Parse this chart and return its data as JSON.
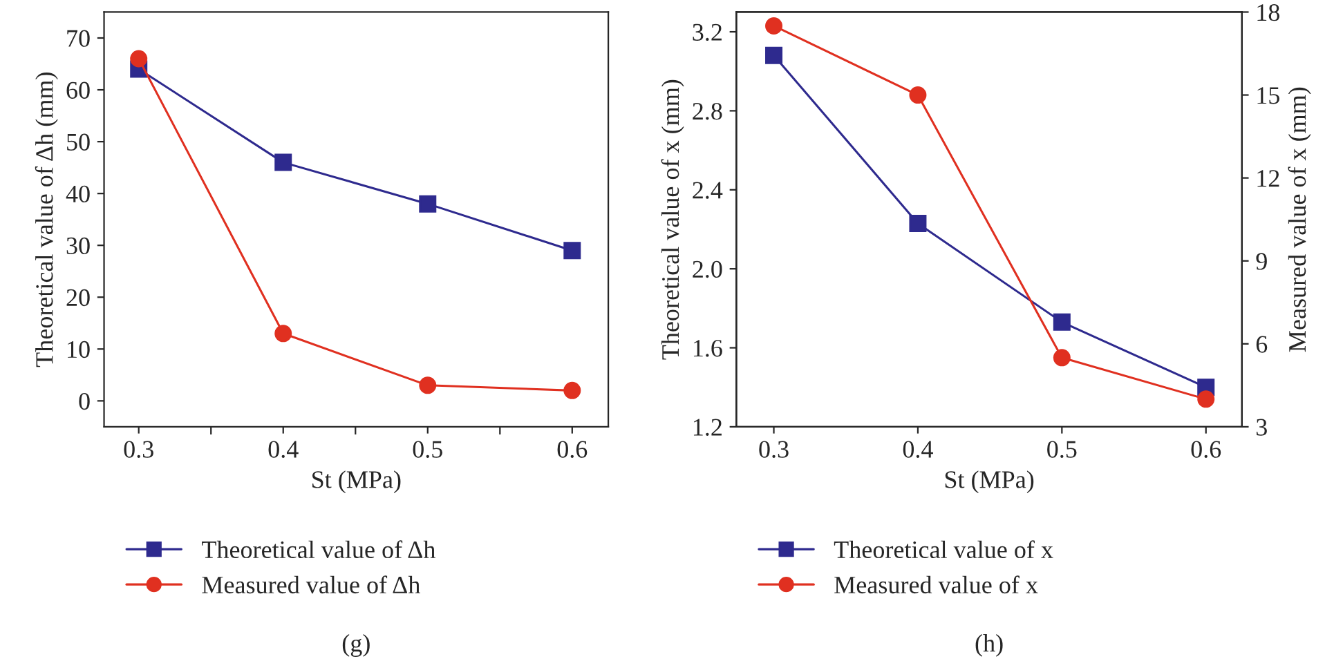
{
  "chart_data": [
    {
      "type": "line",
      "xlabel": "St (MPa)",
      "ylabel": "Theoretical value of Δh (mm)",
      "x": [
        0.3,
        0.4,
        0.5,
        0.6
      ],
      "xlim": [
        0.276,
        0.625
      ],
      "xticks": [
        0.3,
        {
          "value": 0.35,
          "label": null
        },
        0.4,
        {
          "value": 0.45,
          "label": null
        },
        0.5,
        {
          "value": 0.55,
          "label": null
        },
        0.6
      ],
      "ylim": [
        -5,
        75
      ],
      "yticks": [
        0,
        10,
        20,
        30,
        40,
        50,
        60,
        70
      ],
      "legend": "bottom",
      "grid": false,
      "annotations": [
        "(g)"
      ],
      "series": [
        {
          "name": "Theoretical value of Δh",
          "color": "#2e2a8e",
          "marker": "square",
          "values": [
            64,
            46,
            38,
            29
          ]
        },
        {
          "name": "Measured value of Δh",
          "color": "#e03020",
          "marker": "circle",
          "values": [
            66,
            13,
            3,
            2
          ]
        }
      ]
    },
    {
      "type": "line",
      "xlabel": "St (MPa)",
      "ylabel": "Theoretical value of x (mm)",
      "y2label": "Measured value of x (mm)",
      "x": [
        0.3,
        0.4,
        0.5,
        0.6
      ],
      "xlim": [
        0.274,
        0.625
      ],
      "xticks": [
        0.3,
        0.4,
        0.5,
        0.6
      ],
      "ylim": [
        1.2,
        3.3
      ],
      "yticks": [
        {
          "value": 1.2,
          "label": "1.2"
        },
        {
          "value": 1.6,
          "label": "1.6"
        },
        {
          "value": 2.0,
          "label": "2.0"
        },
        {
          "value": 2.4,
          "label": "2.4"
        },
        {
          "value": 2.8,
          "label": "2.8"
        },
        {
          "value": 3.2,
          "label": "3.2"
        }
      ],
      "y2lim": [
        3,
        18
      ],
      "y2ticks": [
        3,
        6,
        9,
        12,
        15,
        18
      ],
      "legend": "bottom",
      "grid": false,
      "annotations": [
        "(h)"
      ],
      "series": [
        {
          "name": "Theoretical value of x",
          "color": "#2e2a8e",
          "marker": "square",
          "values": [
            3.08,
            2.23,
            1.73,
            1.4
          ]
        },
        {
          "name": "Measured value of x",
          "color": "#e03020",
          "marker": "circle",
          "axis": "y2",
          "values": [
            17.5,
            15,
            5.5,
            4.0
          ]
        }
      ]
    }
  ]
}
